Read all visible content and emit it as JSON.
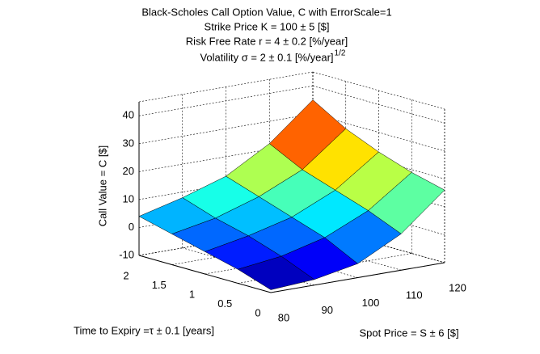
{
  "chart_data": {
    "type": "surface",
    "title": [
      "Black-Scholes Call Option Value, C with ErrorScale=1",
      "Strike Price K = 100 ± 5  [$]",
      "Risk Free Rate r = 4 ± 0.2  [%/year]",
      "Volatility σ = 2 ± 0.1  [%/year]"
    ],
    "title_superscript": "1/2",
    "xlabel": "Spot Price = S ± 6  [$]",
    "ylabel": "Time to Expiry =τ ± 0.1  [years]",
    "zlabel": "Call Value = C  [$]",
    "x": [
      80,
      90,
      100,
      110,
      120
    ],
    "y": [
      0,
      0.5,
      1,
      1.5,
      2
    ],
    "z": [
      [
        -9,
        -8,
        -5,
        3,
        16
      ],
      [
        -5,
        -3,
        1,
        8,
        19
      ],
      [
        -2,
        1,
        5,
        12,
        23
      ],
      [
        1,
        4,
        9,
        16,
        28
      ],
      [
        4,
        8,
        13,
        22,
        35
      ]
    ],
    "colormap": "jet",
    "xlim": [
      80,
      120
    ],
    "xticks": [
      80,
      90,
      100,
      110,
      120
    ],
    "ylim": [
      0,
      2
    ],
    "yticks": [
      0,
      0.5,
      1,
      1.5,
      2
    ],
    "zlim": [
      -10,
      45
    ],
    "zticks": [
      -10,
      0,
      10,
      20,
      30,
      40
    ],
    "grid": true
  }
}
